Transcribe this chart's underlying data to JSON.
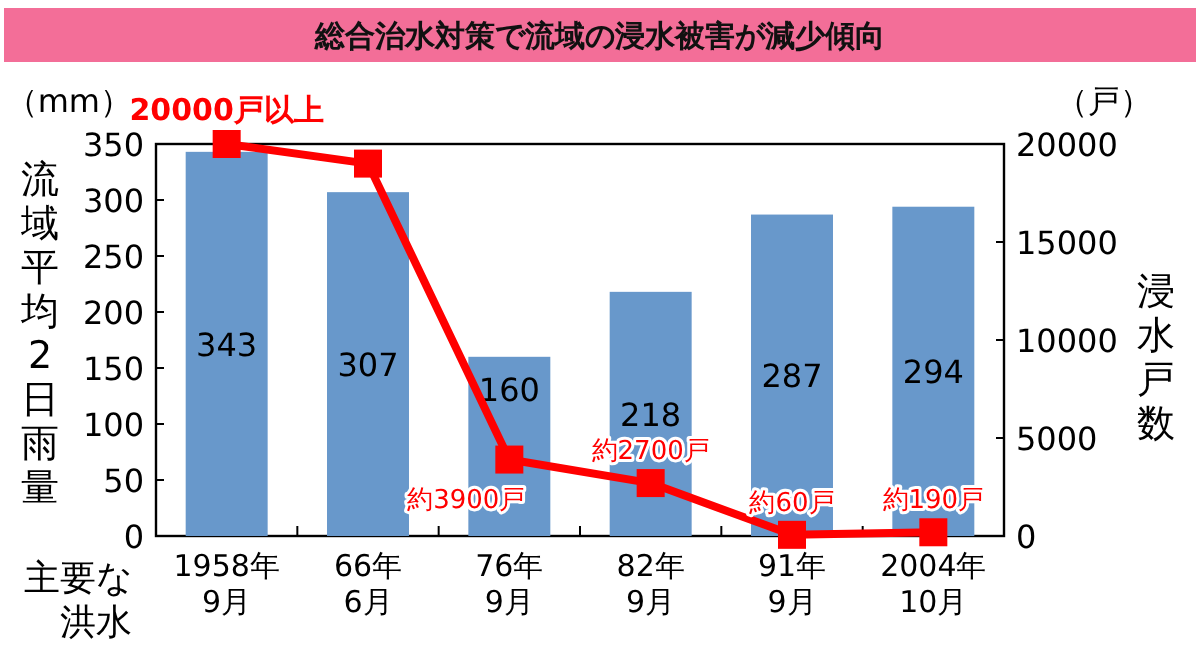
{
  "chart_data": {
    "type": "bar",
    "title": "総合治水対策で流域の浸水被害が減少傾向",
    "categories": [
      "1958年\n9月",
      "66年\n6月",
      "76年\n9月",
      "82年\n9月",
      "91年\n9月",
      "2004年\n10月"
    ],
    "series": [
      {
        "color": "#6898cb",
        "values": [
          343,
          307,
          160,
          218,
          287,
          294
        ],
        "value_labels": [
          "343",
          "307",
          "160",
          "218",
          "287",
          "294"
        ]
      },
      {
        "type": "line",
        "axis": "y2",
        "color": "#ff0000",
        "marker": "square",
        "line_style": "solid",
        "values": [
          20000,
          19000,
          3900,
          2700,
          60,
          190
        ],
        "value_labels": [
          "20000戸以上",
          null,
          "約3900戸",
          "約2700戸",
          "約60戸",
          "約190戸"
        ]
      }
    ],
    "ylabel": "流域平均2日雨量",
    "y2label": "浸水戸数",
    "ylim": [
      0,
      350
    ],
    "yticks": [
      0,
      50,
      100,
      150,
      200,
      250,
      300,
      350
    ],
    "y2lim": [
      0,
      20000
    ],
    "y2ticks": [
      0,
      5000,
      10000,
      15000,
      20000
    ],
    "annotations": [
      "（mm）",
      "（戸）",
      "主要な洪水"
    ]
  }
}
